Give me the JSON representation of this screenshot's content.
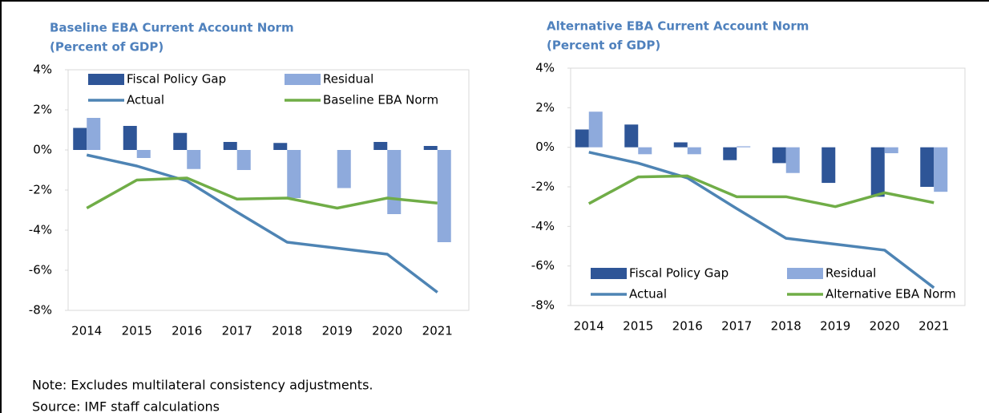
{
  "chart_data": [
    {
      "type": "combo",
      "title": "Baseline EBA Current Account Norm",
      "subtitle": "(Percent of GDP)",
      "categories": [
        "2014",
        "2015",
        "2016",
        "2017",
        "2018",
        "2019",
        "2020",
        "2021"
      ],
      "series": [
        {
          "name": "Fiscal Policy Gap",
          "type": "bar",
          "color": "#2e5597",
          "values": [
            1.1,
            1.2,
            0.85,
            0.4,
            0.35,
            0,
            0.4,
            0.2
          ]
        },
        {
          "name": "Residual",
          "type": "bar",
          "color": "#8eaadc",
          "values": [
            1.6,
            -0.4,
            -0.95,
            -1.0,
            -2.4,
            -1.9,
            -3.2,
            -4.6
          ]
        },
        {
          "name": "Actual",
          "type": "line",
          "color": "#4e84b4",
          "values": [
            -0.25,
            -0.8,
            -1.55,
            -3.1,
            -4.6,
            -4.9,
            -5.2,
            -7.1
          ]
        },
        {
          "name": "Baseline EBA Norm",
          "type": "line",
          "color": "#70ad47",
          "values": [
            -2.9,
            -1.5,
            -1.4,
            -2.45,
            -2.4,
            -2.9,
            -2.4,
            -2.65
          ]
        }
      ],
      "ylim": [
        -8,
        4
      ],
      "yticks": [
        {
          "value": -8,
          "label": "-8%"
        },
        {
          "value": -6,
          "label": "-6%"
        },
        {
          "value": -4,
          "label": "-4%"
        },
        {
          "value": -2,
          "label": "-2%"
        },
        {
          "value": 0,
          "label": "0%"
        },
        {
          "value": 2,
          "label": "2%"
        },
        {
          "value": 4,
          "label": "4%"
        }
      ],
      "legend": "top"
    },
    {
      "type": "combo",
      "title": "Alternative EBA Current Account Norm",
      "subtitle": "(Percent of GDP)",
      "categories": [
        "2014",
        "2015",
        "2016",
        "2017",
        "2018",
        "2019",
        "2020",
        "2021"
      ],
      "series": [
        {
          "name": "Fiscal Policy Gap",
          "type": "bar",
          "color": "#2e5597",
          "values": [
            0.9,
            1.15,
            0.25,
            -0.65,
            -0.8,
            -1.8,
            -2.5,
            -2.0
          ]
        },
        {
          "name": "Residual",
          "type": "bar",
          "color": "#8eaadc",
          "values": [
            1.8,
            -0.35,
            -0.35,
            0.05,
            -1.3,
            0,
            -0.3,
            -2.25
          ]
        },
        {
          "name": "Actual",
          "type": "line",
          "color": "#4e84b4",
          "values": [
            -0.25,
            -0.8,
            -1.55,
            -3.1,
            -4.6,
            -4.9,
            -5.2,
            -7.1
          ]
        },
        {
          "name": "Alternative EBA Norm",
          "type": "line",
          "color": "#70ad47",
          "values": [
            -2.85,
            -1.5,
            -1.45,
            -2.5,
            -2.5,
            -3.0,
            -2.3,
            -2.8
          ]
        }
      ],
      "ylim": [
        -8,
        4
      ],
      "yticks": [
        {
          "value": -8,
          "label": "-8%"
        },
        {
          "value": -6,
          "label": "-6%"
        },
        {
          "value": -4,
          "label": "-4%"
        },
        {
          "value": -2,
          "label": "-2%"
        },
        {
          "value": 0,
          "label": "0%"
        },
        {
          "value": 2,
          "label": "2%"
        },
        {
          "value": 4,
          "label": "4%"
        }
      ],
      "legend": "bottom"
    }
  ],
  "note": "Note: Excludes multilateral  consistency adjustments.",
  "source": "Source: IMF staff calculations"
}
